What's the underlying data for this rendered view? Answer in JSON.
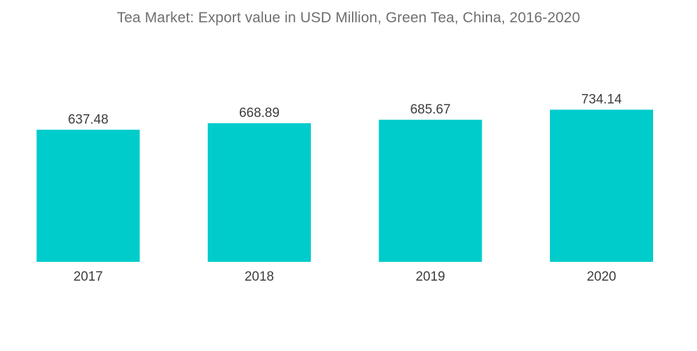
{
  "chart_data": {
    "type": "bar",
    "title": "Tea Market:  Export value in USD Million, Green Tea, China, 2016-2020",
    "xlabel": "",
    "ylabel": "",
    "categories": [
      "2017",
      "2018",
      "2019",
      "2020"
    ],
    "values": [
      637.48,
      668.89,
      685.67,
      734.14
    ],
    "value_labels": [
      "637.48",
      "668.89",
      "685.67",
      "734.14"
    ],
    "ylim": [
      0,
      800
    ],
    "grid": false,
    "legend": "none",
    "bar_color": "#00cccc"
  }
}
